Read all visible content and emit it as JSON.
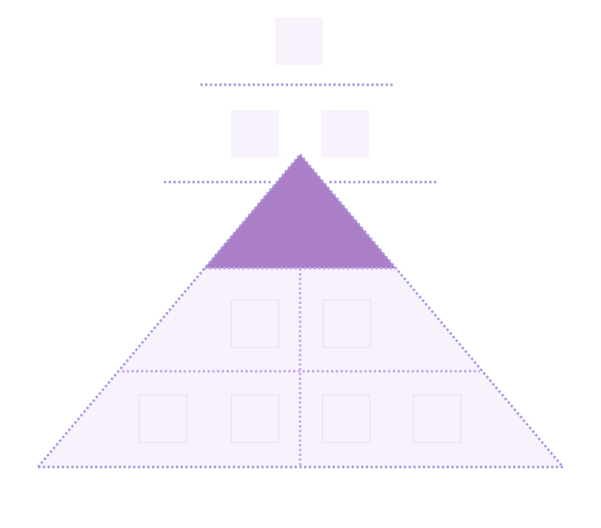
{
  "diagram": {
    "kind": "pyramid",
    "colors": {
      "background": "#ffffff",
      "pyramid_fill": "#f7f2fc",
      "apex_fill": "#ab7fc8",
      "dotted_line": "#a99ae0",
      "divider_line": "#c7a6f2",
      "placeholder_fill": "#f7f2fc",
      "placeholder_border": "#e6d9f2"
    },
    "levels": [
      {
        "id": "top-floating",
        "placeholder_count": 1
      },
      {
        "id": "upper-floating",
        "placeholder_count": 2
      },
      {
        "id": "apex",
        "placeholder_count": 0
      },
      {
        "id": "middle",
        "placeholder_count": 2
      },
      {
        "id": "base",
        "placeholder_count": 4
      }
    ]
  }
}
